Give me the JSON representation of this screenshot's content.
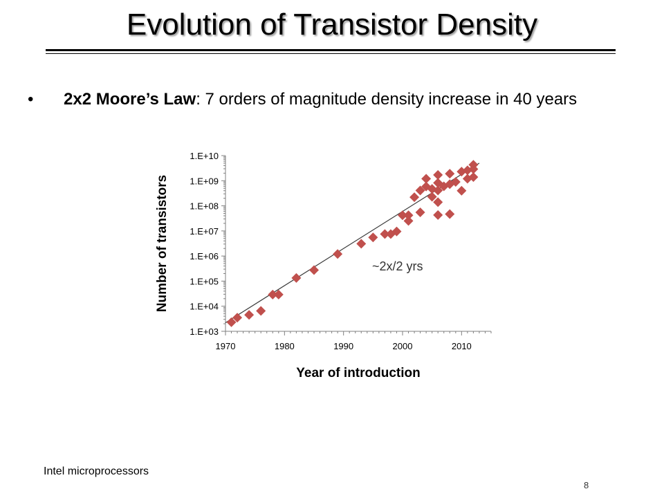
{
  "slide": {
    "title": "Evolution of Transistor Density",
    "bullet_marker": "•",
    "bullet_bold": "2x2 Moore’s Law",
    "bullet_text": ": 7 orders of magnitude density increase in 40 years",
    "footnote": "Intel microprocessors",
    "page_number": "8"
  },
  "chart_data": {
    "type": "scatter",
    "xlabel": "Year of introduction",
    "ylabel": "Number of transistors",
    "xlim": [
      1970,
      2015
    ],
    "ylim": [
      1000,
      10000000000
    ],
    "yscale": "log",
    "x_ticks": [
      1970,
      1980,
      1990,
      2000,
      2010
    ],
    "x_tick_labels": [
      "1970",
      "1980",
      "1990",
      "2000",
      "2010"
    ],
    "y_ticks": [
      1000,
      10000,
      100000,
      1000000,
      10000000,
      100000000,
      1000000000,
      10000000000
    ],
    "y_tick_labels": [
      "1.E+03",
      "1.E+04",
      "1.E+05",
      "1.E+06",
      "1.E+07",
      "1.E+08",
      "1.E+09",
      "1.E+10"
    ],
    "grid": false,
    "marker": "diamond",
    "marker_color": "#c0504d",
    "trend_color": "#3a3a3a",
    "annotation": "~2x/2 yrs",
    "trendline": [
      [
        1970,
        2200
      ],
      [
        2013,
        5000000000
      ]
    ],
    "points": [
      [
        1971,
        2300
      ],
      [
        1972,
        3500
      ],
      [
        1974,
        4500
      ],
      [
        1976,
        6500
      ],
      [
        1978,
        29000
      ],
      [
        1979,
        29000
      ],
      [
        1982,
        134000
      ],
      [
        1985,
        275000
      ],
      [
        1989,
        1200000
      ],
      [
        1993,
        3100000
      ],
      [
        1995,
        5500000
      ],
      [
        1997,
        7500000
      ],
      [
        1998,
        7500000
      ],
      [
        1999,
        9500000
      ],
      [
        2000,
        42000000
      ],
      [
        2001,
        25000000
      ],
      [
        2001,
        42000000
      ],
      [
        2002,
        220000000
      ],
      [
        2003,
        55000000
      ],
      [
        2003,
        410000000
      ],
      [
        2004,
        590000000
      ],
      [
        2004,
        1200000000
      ],
      [
        2005,
        230000000
      ],
      [
        2005,
        470000000
      ],
      [
        2006,
        410000000
      ],
      [
        2006,
        820000000
      ],
      [
        2006,
        1700000000
      ],
      [
        2006,
        140000000
      ],
      [
        2006,
        43000000
      ],
      [
        2007,
        600000000
      ],
      [
        2008,
        1900000000
      ],
      [
        2008,
        730000000
      ],
      [
        2008,
        47000000
      ],
      [
        2009,
        900000000
      ],
      [
        2010,
        2300000000
      ],
      [
        2010,
        400000000
      ],
      [
        2011,
        1200000000
      ],
      [
        2011,
        2600000000
      ],
      [
        2012,
        1400000000
      ],
      [
        2012,
        4300000000
      ],
      [
        2012,
        2900000000
      ]
    ]
  }
}
